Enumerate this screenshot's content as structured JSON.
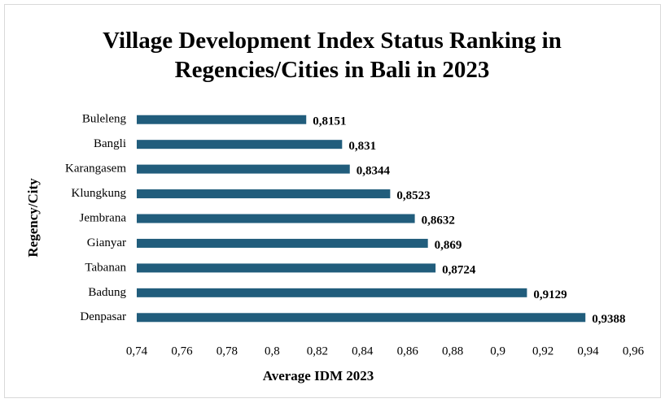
{
  "chart_data": {
    "type": "bar",
    "orientation": "horizontal",
    "title": "Village Development Index Status Ranking in Regencies/Cities in Bali in 2023",
    "x_label": "Average IDM 2023",
    "y_label": "Regency/City",
    "categories": [
      "Buleleng",
      "Bangli",
      "Karangasem",
      "Klungkung",
      "Jembrana",
      "Gianyar",
      "Tabanan",
      "Badung",
      "Denpasar"
    ],
    "values": [
      0.8151,
      0.831,
      0.8344,
      0.8523,
      0.8632,
      0.869,
      0.8724,
      0.9129,
      0.9388
    ],
    "value_labels": [
      "0,8151",
      "0,831",
      "0,8344",
      "0,8523",
      "0,8632",
      "0,869",
      "0,8724",
      "0,9129",
      "0,9388"
    ],
    "color": "#215d7c",
    "xlim": [
      0.74,
      0.96
    ],
    "xticks": [
      {
        "value": 0.74,
        "label": "0,74"
      },
      {
        "value": 0.76,
        "label": "0,76"
      },
      {
        "value": 0.78,
        "label": "0,78"
      },
      {
        "value": 0.8,
        "label": "0,8"
      },
      {
        "value": 0.82,
        "label": "0,82"
      },
      {
        "value": 0.84,
        "label": "0,84"
      },
      {
        "value": 0.86,
        "label": "0,86"
      },
      {
        "value": 0.88,
        "label": "0,88"
      },
      {
        "value": 0.9,
        "label": "0,9"
      },
      {
        "value": 0.92,
        "label": "0,92"
      },
      {
        "value": 0.94,
        "label": "0,94"
      },
      {
        "value": 0.96,
        "label": "0,96"
      }
    ],
    "grid": false
  }
}
